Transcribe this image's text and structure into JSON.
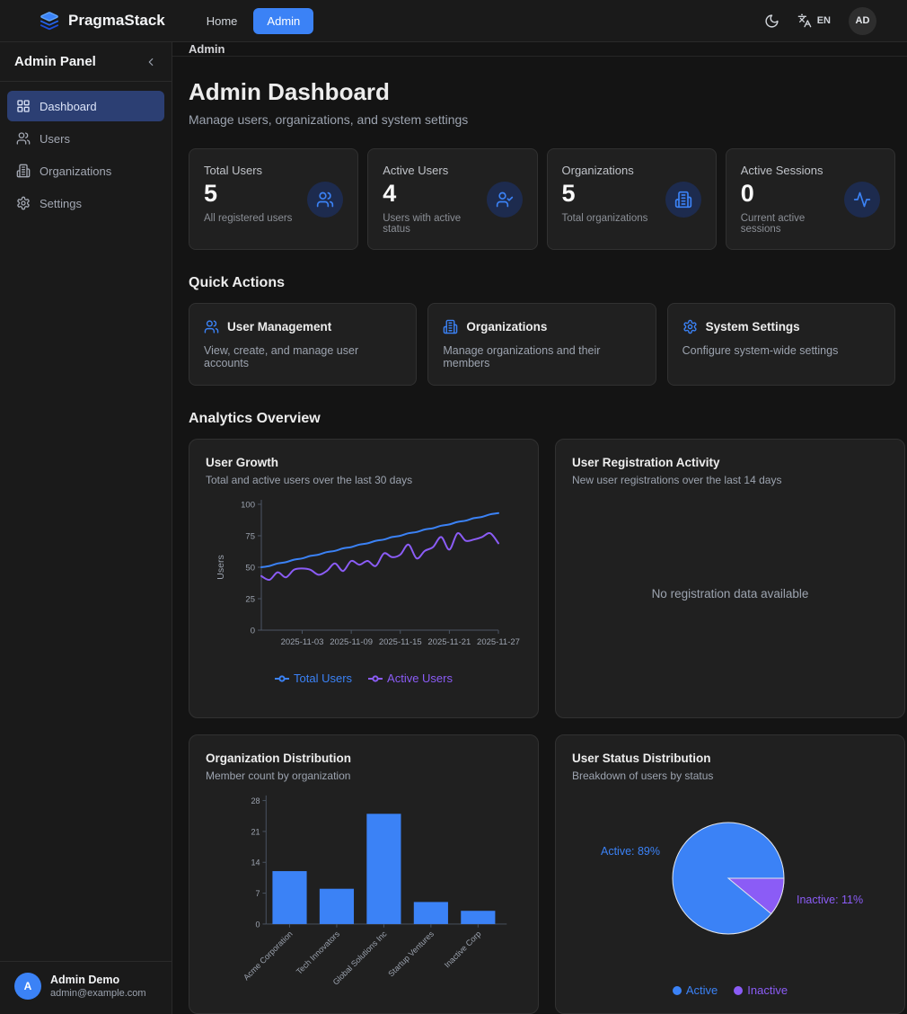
{
  "navbar": {
    "brand": "PragmaStack",
    "links": [
      {
        "label": "Home",
        "active": false
      },
      {
        "label": "Admin",
        "active": true
      }
    ],
    "language": "EN",
    "avatar_initials": "AD",
    "icons": [
      "layers-logo",
      "moon",
      "languages"
    ]
  },
  "sidebar": {
    "title": "Admin Panel",
    "items": [
      {
        "label": "Dashboard",
        "icon": "layout-grid",
        "active": true
      },
      {
        "label": "Users",
        "icon": "users",
        "active": false
      },
      {
        "label": "Organizations",
        "icon": "building",
        "active": false
      },
      {
        "label": "Settings",
        "icon": "gear",
        "active": false
      }
    ],
    "user": {
      "name": "Admin Demo",
      "email": "admin@example.com",
      "avatar_initial": "A"
    }
  },
  "breadcrumb": "Admin",
  "header": {
    "title": "Admin Dashboard",
    "subtitle": "Manage users, organizations, and system settings"
  },
  "stats": [
    {
      "label": "Total Users",
      "value": "5",
      "description": "All registered users",
      "icon": "users-icon"
    },
    {
      "label": "Active Users",
      "value": "4",
      "description": "Users with active status",
      "icon": "user-check-icon"
    },
    {
      "label": "Organizations",
      "value": "5",
      "description": "Total organizations",
      "icon": "building-icon"
    },
    {
      "label": "Active Sessions",
      "value": "0",
      "description": "Current active sessions",
      "icon": "activity-icon"
    }
  ],
  "quick_actions": {
    "heading": "Quick Actions",
    "cards": [
      {
        "title": "User Management",
        "description": "View, create, and manage user accounts",
        "icon": "users-icon"
      },
      {
        "title": "Organizations",
        "description": "Manage organizations and their members",
        "icon": "building-icon"
      },
      {
        "title": "System Settings",
        "description": "Configure system-wide settings",
        "icon": "gear-icon"
      }
    ]
  },
  "analytics": {
    "heading": "Analytics Overview",
    "cards": [
      {
        "title": "User Growth",
        "subtitle": "Total and active users over the last 30 days"
      },
      {
        "title": "User Registration Activity",
        "subtitle": "New user registrations over the last 14 days",
        "empty_message": "No registration data available"
      },
      {
        "title": "Organization Distribution",
        "subtitle": "Member count by organization"
      },
      {
        "title": "User Status Distribution",
        "subtitle": "Breakdown of users by status"
      }
    ]
  },
  "colors": {
    "accent": "#3b82f6",
    "purple": "#8b5cf6",
    "sidebar_active": "#2c3f73",
    "card_bg": "#202020",
    "axis": "#4b5563",
    "muted_text": "#9ca3af"
  },
  "chart_data": [
    {
      "type": "line",
      "title": "User Growth",
      "xlabel": "",
      "ylabel": "Users",
      "ylim": [
        0,
        100
      ],
      "yticks": [
        0,
        25,
        50,
        75,
        100
      ],
      "xticks": [
        "2025-11-03",
        "2025-11-09",
        "2025-11-15",
        "2025-11-21",
        "2025-11-27"
      ],
      "xtick_indices": [
        5,
        11,
        17,
        23,
        29
      ],
      "grid": false,
      "legend_position": "bottom",
      "series": [
        {
          "name": "Total Users",
          "color": "#3b82f6",
          "values": [
            50,
            51,
            53,
            54,
            56,
            57,
            59,
            60,
            62,
            63,
            65,
            66,
            68,
            69,
            71,
            72,
            74,
            75,
            77,
            78,
            80,
            81,
            83,
            84,
            86,
            87,
            89,
            90,
            92,
            93
          ]
        },
        {
          "name": "Active Users",
          "color": "#8b5cf6",
          "values": [
            43,
            40,
            46,
            42,
            48,
            49,
            48,
            44,
            47,
            53,
            47,
            55,
            52,
            55,
            51,
            61,
            58,
            60,
            68,
            57,
            63,
            66,
            74,
            64,
            77,
            71,
            72,
            74,
            77,
            69
          ]
        }
      ]
    },
    {
      "type": "bar",
      "title": "Organization Distribution",
      "categories": [
        "Acme Corporation",
        "Tech Innovators",
        "Global Solutions Inc",
        "Startup Ventures",
        "Inactive Corp"
      ],
      "values": [
        12,
        8,
        25,
        5,
        3
      ],
      "xlabel": "",
      "ylabel": "",
      "ylim": [
        0,
        28
      ],
      "yticks": [
        0,
        7,
        14,
        21,
        28
      ],
      "grid": false,
      "color": "#3b82f6"
    },
    {
      "type": "pie",
      "title": "User Status Distribution",
      "slices": [
        {
          "label": "Active",
          "pct": 89,
          "color": "#3b82f6"
        },
        {
          "label": "Inactive",
          "pct": 11,
          "color": "#8b5cf6"
        }
      ],
      "labels": [
        "Active: 89%",
        "Inactive: 11%"
      ],
      "legend_position": "bottom"
    }
  ]
}
